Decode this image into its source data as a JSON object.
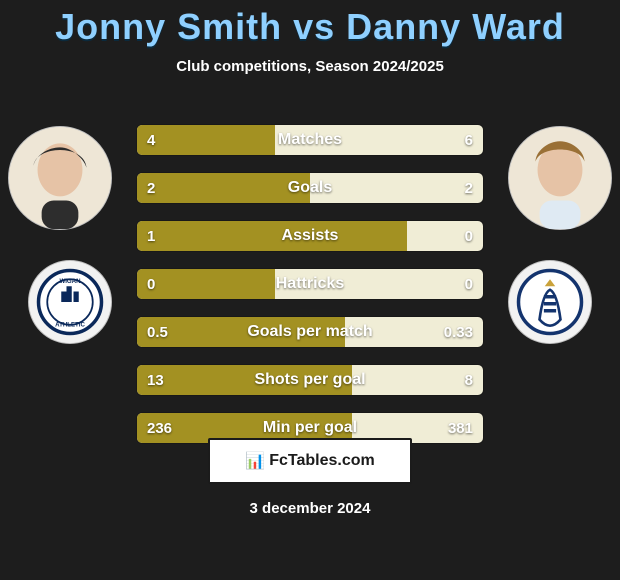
{
  "title": "Jonny Smith vs Danny Ward",
  "subtitle": "Club competitions, Season 2024/2025",
  "footer_brand": "FcTables.com",
  "footer_date": "3 december 2024",
  "colors": {
    "olive": "#a39122",
    "cream": "#f0edd6",
    "title": "#8fd0ff",
    "bg": "#1d1d1d"
  },
  "players": {
    "left": {
      "name": "Jonny Smith",
      "club_short": "WIGAN\nATHLETIC"
    },
    "right": {
      "name": "Danny Ward",
      "club_short": "HTFC"
    }
  },
  "rows": [
    {
      "label": "Matches",
      "left": "4",
      "right": "6",
      "left_pct": 40
    },
    {
      "label": "Goals",
      "left": "2",
      "right": "2",
      "left_pct": 50
    },
    {
      "label": "Assists",
      "left": "1",
      "right": "0",
      "left_pct": 78
    },
    {
      "label": "Hattricks",
      "left": "0",
      "right": "0",
      "left_pct": 40
    },
    {
      "label": "Goals per match",
      "left": "0.5",
      "right": "0.33",
      "left_pct": 60
    },
    {
      "label": "Shots per goal",
      "left": "13",
      "right": "8",
      "left_pct": 62
    },
    {
      "label": "Min per goal",
      "left": "236",
      "right": "381",
      "left_pct": 62
    }
  ]
}
